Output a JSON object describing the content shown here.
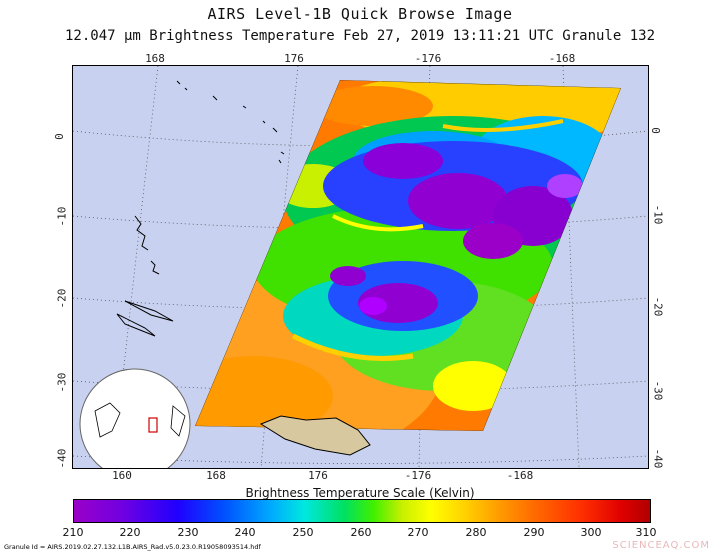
{
  "header": {
    "title": "AIRS Level-1B Quick Browse Image",
    "subtitle": "12.047 μm Brightness Temperature    Feb 27, 2019 13:11:21 UTC   Granule 132"
  },
  "map": {
    "top_lon_labels": [
      "168",
      "176",
      "-176",
      "-168"
    ],
    "bottom_lon_labels": [
      "160",
      "168",
      "176",
      "-176",
      "-168"
    ],
    "left_lat_labels": [
      "0",
      "-10",
      "-20",
      "-30",
      "-40"
    ],
    "right_lat_labels": [
      "0",
      "-10",
      "-20",
      "-30",
      "-40"
    ],
    "ocean_color": "#c8d2f0"
  },
  "colorbar": {
    "title": "Brightness Temperature Scale (Kelvin)",
    "labels": [
      "210",
      "220",
      "230",
      "240",
      "250",
      "260",
      "270",
      "280",
      "290",
      "300",
      "310"
    ]
  },
  "footer": {
    "granule_id": "Granule Id = AIRS.2019.02.27.132.L1B.AIRS_Rad.v5.0.23.0.R19058093514.hdf",
    "watermark": "SCIENCEAQ.COM"
  }
}
